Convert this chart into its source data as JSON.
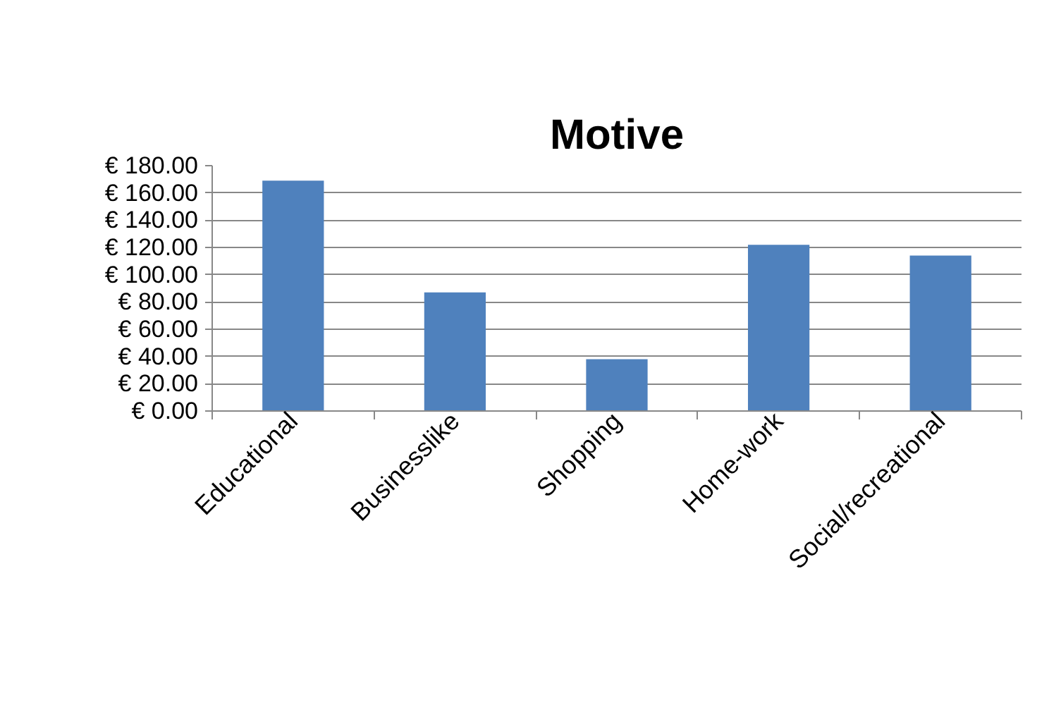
{
  "chart_data": {
    "type": "bar",
    "title": "Motive",
    "categories": [
      "Educational",
      "Businesslike",
      "Shopping",
      "Home-work",
      "Social/recreational"
    ],
    "values": [
      169,
      87,
      38,
      122,
      114
    ],
    "color": "#4f81bd",
    "ylim": [
      0,
      180
    ],
    "yticks": [
      {
        "value": 0,
        "label": "€ 0.00"
      },
      {
        "value": 20,
        "label": "€ 20.00"
      },
      {
        "value": 40,
        "label": "€ 40.00"
      },
      {
        "value": 60,
        "label": "€ 60.00"
      },
      {
        "value": 80,
        "label": "€ 80.00"
      },
      {
        "value": 100,
        "label": "€ 100.00"
      },
      {
        "value": 120,
        "label": "€ 120.00"
      },
      {
        "value": 140,
        "label": "€ 140.00"
      },
      {
        "value": 160,
        "label": "€ 160.00"
      },
      {
        "value": 180,
        "label": "€ 180.00"
      }
    ],
    "grid": "y"
  }
}
